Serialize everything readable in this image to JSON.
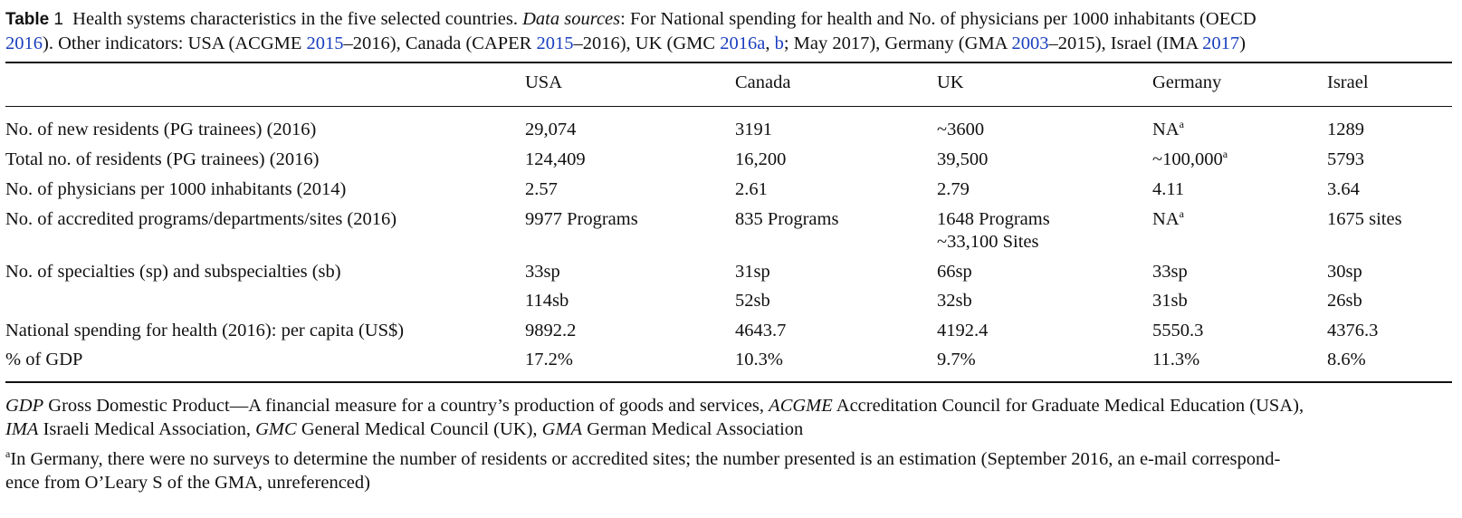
{
  "caption": {
    "label": "Table",
    "number": "1",
    "text_1": "Health systems characteristics in the five selected countries. ",
    "sources_label": "Data sources",
    "text_2": ": For National spending for health and No. of physicians per 1000 inhabitants (OECD ",
    "ref_oecd_year": "2016",
    "text_3": "). Other indicators: USA (ACGME ",
    "ref_acgme_year": "2015",
    "text_4": "–2016), Canada (CAPER ",
    "ref_caper_year": "2015",
    "text_5": "–2016), UK (GMC ",
    "ref_gmc_a": "2016a",
    "text_6": ", ",
    "ref_gmc_b": "b",
    "text_7": "; May 2017), Germany (GMA ",
    "ref_gma_year": "2003",
    "text_8": "–2015), Israel (IMA ",
    "ref_ima_year": "2017",
    "text_9": ")"
  },
  "table": {
    "headers": [
      "",
      "USA",
      "Canada",
      "UK",
      "Germany",
      "Israel"
    ],
    "rows": [
      {
        "label": "No. of new residents (PG trainees) (2016)",
        "usa": "29,074",
        "canada": "3191",
        "uk": "~3600",
        "germany": "NA",
        "germany_sup": "a",
        "israel": "1289"
      },
      {
        "label": "Total no. of residents (PG trainees) (2016)",
        "usa": "124,409",
        "canada": "16,200",
        "uk": "39,500",
        "germany": "~100,000",
        "germany_sup": "a",
        "israel": "5793"
      },
      {
        "label": "No. of physicians per 1000 inhabitants (2014)",
        "usa": "2.57",
        "canada": "2.61",
        "uk": "2.79",
        "germany": "4.11",
        "israel": "3.64"
      },
      {
        "label": "No. of accredited programs/departments/sites (2016)",
        "usa": "9977 Programs",
        "canada": "835 Programs",
        "uk": "1648 Programs",
        "uk_line2": "~33,100 Sites",
        "germany": "NA",
        "germany_sup": "a",
        "israel": "1675 sites"
      },
      {
        "label": "No. of specialties (sp) and subspecialties (sb)",
        "usa": "33sp",
        "canada": "31sp",
        "uk": "66sp",
        "germany": "33sp",
        "israel": "30sp"
      },
      {
        "label": "",
        "usa": "114sb",
        "canada": "52sb",
        "uk": "32sb",
        "germany": "31sb",
        "israel": "26sb"
      },
      {
        "label": "National spending for health (2016): per capita (US$)",
        "usa": "9892.2",
        "canada": "4643.7",
        "uk": "4192.4",
        "germany": "5550.3",
        "israel": "4376.3"
      },
      {
        "label": "% of GDP",
        "usa": "17.2%",
        "canada": "10.3%",
        "uk": "9.7%",
        "germany": "11.3%",
        "israel": "8.6%"
      }
    ]
  },
  "footnotes": {
    "abbr": [
      {
        "term": "GDP",
        "def": " Gross Domestic Product—A financial measure for a country’s production of goods and services, "
      },
      {
        "term": "ACGME",
        "def": " Accreditation Council for Graduate Medical Education (USA),"
      },
      {
        "term": "IMA",
        "def": " Israeli Medical Association, "
      },
      {
        "term": "GMC",
        "def": " General Medical Council (UK), "
      },
      {
        "term": "GMA",
        "def": " German Medical Association"
      }
    ],
    "note_marker": "a",
    "note_line1": "In Germany, there were no surveys to determine the number of residents or accredited sites; the number presented is an estimation (September 2016, an e-mail correspond-",
    "note_line2": "ence from O’Leary S of the GMA, unreferenced)"
  }
}
